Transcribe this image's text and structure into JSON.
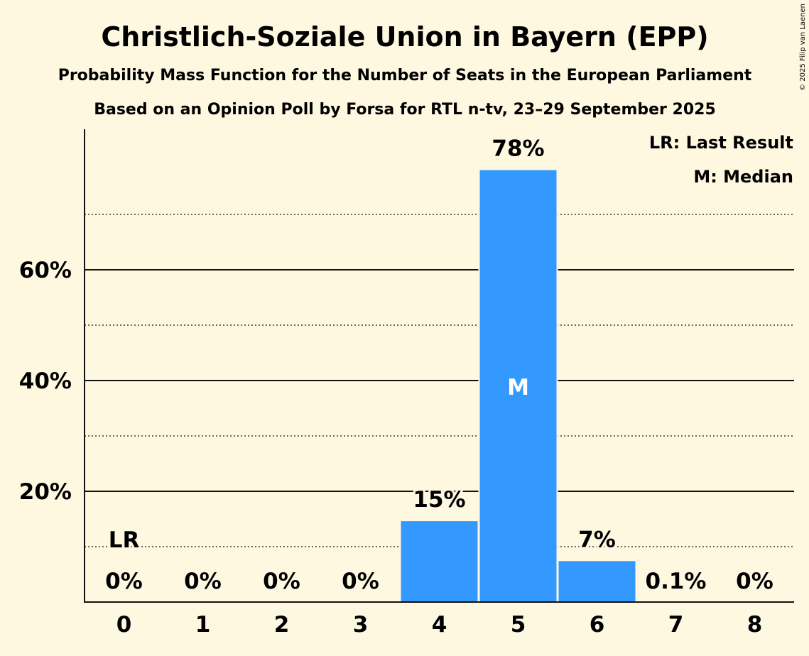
{
  "header": {
    "title": "Christlich-Soziale Union in Bayern (EPP)",
    "subtitle": "Probability Mass Function for the Number of Seats in the European Parliament",
    "source": "Based on an Opinion Poll by Forsa for RTL n-tv, 23–29 September 2025"
  },
  "legend": {
    "last_result": "LR: Last Result",
    "median": "M: Median"
  },
  "copyright": "© 2025 Filip van Laenen",
  "colors": {
    "bar": "#3399ff",
    "background": "#fff8e1",
    "text": "#111111"
  },
  "chart_data": {
    "type": "bar",
    "categories": [
      "0",
      "1",
      "2",
      "3",
      "4",
      "5",
      "6",
      "7",
      "8"
    ],
    "values": [
      0,
      0,
      0,
      0,
      14.6,
      78,
      7.4,
      0.1,
      0
    ],
    "value_labels": [
      "0%",
      "0%",
      "0%",
      "0%",
      "15%",
      "78%",
      "7%",
      "0.1%",
      "0%"
    ],
    "y_ticks": [
      {
        "value": 20,
        "label": "20%"
      },
      {
        "value": 40,
        "label": "40%"
      },
      {
        "value": 60,
        "label": "60%"
      }
    ],
    "minor_gridlines": [
      10,
      30,
      50,
      70
    ],
    "ylim": [
      0,
      85
    ],
    "last_result": {
      "category": "0",
      "label": "LR"
    },
    "median": {
      "category": "5",
      "label": "M"
    },
    "legend_position": "top-right"
  }
}
